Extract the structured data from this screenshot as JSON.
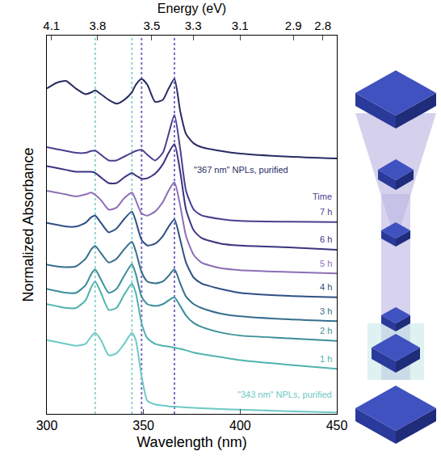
{
  "chart_data": {
    "type": "line",
    "x_title": "Wavelength (nm)",
    "x2_title": "Energy (eV)",
    "y_title": "Normalized Absorbance",
    "x": [
      300,
      305,
      310,
      315,
      320,
      323,
      325,
      328,
      332,
      336,
      340,
      344,
      346,
      349,
      352,
      356,
      360,
      363,
      366,
      369,
      372,
      376,
      380,
      390,
      400,
      425,
      450
    ],
    "xlim": [
      300,
      450
    ],
    "xticks": [
      300,
      350,
      400,
      450
    ],
    "x2ticks": [
      4.1,
      3.8,
      3.5,
      3.3,
      3.1,
      2.9,
      2.8
    ],
    "ylim": [
      0,
      10
    ],
    "tick_labels": "x",
    "grid": false,
    "series": [
      {
        "name": "\"367 nm\" NPLs, purified",
        "color": "#282c62",
        "values": [
          8.6,
          8.75,
          8.8,
          8.6,
          8.45,
          8.5,
          8.55,
          8.45,
          8.3,
          8.2,
          8.3,
          8.5,
          8.7,
          8.85,
          8.7,
          8.25,
          8.3,
          8.6,
          8.85,
          8.0,
          7.4,
          7.15,
          7.05,
          6.95,
          6.88,
          6.8,
          6.75
        ]
      },
      {
        "name": "7 h",
        "color": "#4a3f8f",
        "values": [
          7.05,
          7.0,
          6.95,
          6.9,
          6.9,
          6.95,
          6.96,
          6.85,
          6.7,
          6.7,
          6.8,
          6.9,
          6.95,
          6.98,
          6.85,
          6.7,
          6.9,
          7.4,
          7.9,
          7.0,
          5.9,
          5.4,
          5.25,
          5.15,
          5.1,
          5.08,
          5.07
        ]
      },
      {
        "name": "6 h",
        "color": "#3b3580",
        "values": [
          6.55,
          6.5,
          6.45,
          6.4,
          6.4,
          6.4,
          6.37,
          6.25,
          6.1,
          6.1,
          6.25,
          6.37,
          6.3,
          6.22,
          6.23,
          6.35,
          6.6,
          6.9,
          7.13,
          6.4,
          5.4,
          4.85,
          4.65,
          4.5,
          4.45,
          4.4,
          4.34
        ]
      },
      {
        "name": "5 h",
        "color": "#8d6fb5",
        "values": [
          5.9,
          5.85,
          5.8,
          5.75,
          5.8,
          5.85,
          5.79,
          5.65,
          5.4,
          5.45,
          5.7,
          5.85,
          5.65,
          5.3,
          5.24,
          5.35,
          5.6,
          5.9,
          6.12,
          5.5,
          4.7,
          4.2,
          4.0,
          3.85,
          3.8,
          3.75,
          3.71
        ]
      },
      {
        "name": "4 h",
        "color": "#2f4f85",
        "values": [
          5.05,
          5.0,
          4.95,
          4.95,
          5.05,
          5.2,
          5.24,
          5.05,
          4.8,
          4.9,
          5.15,
          5.35,
          5.1,
          4.6,
          4.45,
          4.5,
          4.7,
          4.95,
          5.14,
          4.6,
          4.0,
          3.6,
          3.45,
          3.3,
          3.2,
          3.12,
          3.08
        ]
      },
      {
        "name": "3 h",
        "color": "#356f8d",
        "values": [
          3.95,
          3.9,
          3.88,
          3.9,
          4.1,
          4.35,
          4.44,
          4.25,
          4.0,
          4.1,
          4.35,
          4.55,
          4.3,
          3.75,
          3.5,
          3.45,
          3.5,
          3.65,
          3.82,
          3.45,
          3.1,
          2.9,
          2.8,
          2.65,
          2.58,
          2.5,
          2.45
        ]
      },
      {
        "name": "2 h",
        "color": "#3a8f9a",
        "values": [
          3.3,
          3.25,
          3.2,
          3.2,
          3.4,
          3.7,
          3.82,
          3.55,
          3.2,
          3.3,
          3.65,
          3.96,
          3.7,
          3.1,
          2.9,
          2.85,
          2.9,
          3.0,
          3.08,
          2.85,
          2.6,
          2.4,
          2.3,
          2.15,
          2.07,
          2.0,
          1.93
        ]
      },
      {
        "name": "1 h",
        "color": "#4fb3ae",
        "values": [
          2.9,
          2.85,
          2.8,
          2.8,
          3.0,
          3.35,
          3.5,
          3.2,
          2.75,
          2.8,
          3.15,
          3.44,
          3.2,
          2.4,
          2.0,
          1.85,
          1.8,
          1.78,
          1.75,
          1.72,
          1.68,
          1.62,
          1.58,
          1.5,
          1.42,
          1.3,
          1.19
        ]
      },
      {
        "name": "\"343 nm\" NPLs, purified",
        "color": "#6cc9c4",
        "values": [
          1.95,
          1.9,
          1.85,
          1.8,
          1.85,
          2.05,
          2.14,
          1.95,
          1.55,
          1.6,
          1.85,
          2.14,
          1.95,
          1.0,
          0.35,
          0.25,
          0.22,
          0.2,
          0.19,
          0.18,
          0.17,
          0.16,
          0.15,
          0.13,
          0.11,
          0.07,
          0.04
        ]
      }
    ],
    "annotations": [
      {
        "text": "Time"
      }
    ],
    "vlines": [
      {
        "x": 325,
        "color": "#8fd3d0"
      },
      {
        "x": 344,
        "color": "#8fd3d0"
      },
      {
        "x": 349,
        "color": "#7b6cc4"
      },
      {
        "x": 366,
        "color": "#7b6cc4"
      }
    ]
  }
}
